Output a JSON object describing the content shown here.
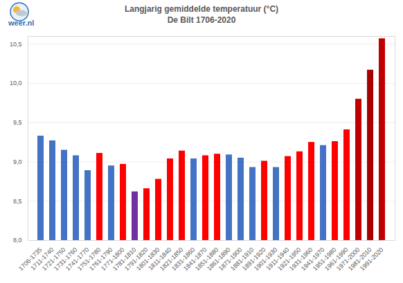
{
  "chart_data": {
    "type": "bar",
    "title": "Langjarig gemiddelde temperatuur (°C)",
    "subtitle": "De Bilt 1706-2020",
    "annotations": [
      "weer.nl"
    ],
    "categories": [
      "1706-1735",
      "1711-1740",
      "1721-1750",
      "1731-1760",
      "1741-1770",
      "1751-1780",
      "1761-1790",
      "1771-1800",
      "1781-1810",
      "1791-1820",
      "1801-1830",
      "1811-1840",
      "1821-1850",
      "1831-1860",
      "1841-1870",
      "1851-1880",
      "1861-1890",
      "1871-1900",
      "1881-1910",
      "1891-1920",
      "1901-1930",
      "1911-1940",
      "1921-1950",
      "1931-1960",
      "1941-1970",
      "1951-1980",
      "1961-1990",
      "1971-2000",
      "1981-2010",
      "1991-2020"
    ],
    "values": [
      9.33,
      9.27,
      9.15,
      9.08,
      8.89,
      9.11,
      8.95,
      8.97,
      8.62,
      8.66,
      8.78,
      9.04,
      9.14,
      9.04,
      9.08,
      9.1,
      9.09,
      9.05,
      8.93,
      9.01,
      8.93,
      9.07,
      9.13,
      9.25,
      9.21,
      9.26,
      9.41,
      9.8,
      10.17,
      10.57
    ],
    "colors": [
      "#4472c4",
      "#4472c4",
      "#4472c4",
      "#4472c4",
      "#4472c4",
      "#ff0000",
      "#4472c4",
      "#ff0000",
      "#7030a0",
      "#ff0000",
      "#ff0000",
      "#ff0000",
      "#ff0000",
      "#4472c4",
      "#ff0000",
      "#ff0000",
      "#4472c4",
      "#4472c4",
      "#4472c4",
      "#ff0000",
      "#4472c4",
      "#ff0000",
      "#ff0000",
      "#ff0000",
      "#4472c4",
      "#ff0000",
      "#ff0000",
      "#c00000",
      "#a80000",
      "#c00000"
    ],
    "ylim": [
      8,
      10.6
    ],
    "yticks": [
      {
        "value": 8,
        "label": "8,0"
      },
      {
        "value": 8.5,
        "label": "8,5"
      },
      {
        "value": 9,
        "label": "9,0"
      },
      {
        "value": 9.5,
        "label": "9,5"
      },
      {
        "value": 10,
        "label": "10,0"
      },
      {
        "value": 10.5,
        "label": "10,5"
      }
    ],
    "grid": true
  }
}
